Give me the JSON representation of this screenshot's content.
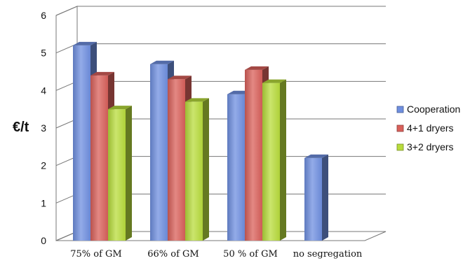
{
  "chart_data": {
    "type": "bar",
    "style": "3d-clustered-column",
    "ylabel": "€/t",
    "ylim": [
      0,
      6
    ],
    "yticks": [
      0,
      1,
      2,
      3,
      4,
      5,
      6
    ],
    "grid": true,
    "legend_position": "right",
    "categories": [
      "75% of GM",
      "66% of GM",
      "50 % of GM",
      "no segregation"
    ],
    "series": [
      {
        "name": "Cooperation",
        "color": "#6f8fe0",
        "values": [
          5.2,
          4.7,
          3.9,
          2.2
        ]
      },
      {
        "name": "4+1 dryers",
        "color": "#d9605a",
        "values": [
          4.4,
          4.3,
          4.55,
          null
        ]
      },
      {
        "name": "3+2 dryers",
        "color": "#b8dc3c",
        "values": [
          3.5,
          3.7,
          4.2,
          null
        ]
      }
    ]
  }
}
